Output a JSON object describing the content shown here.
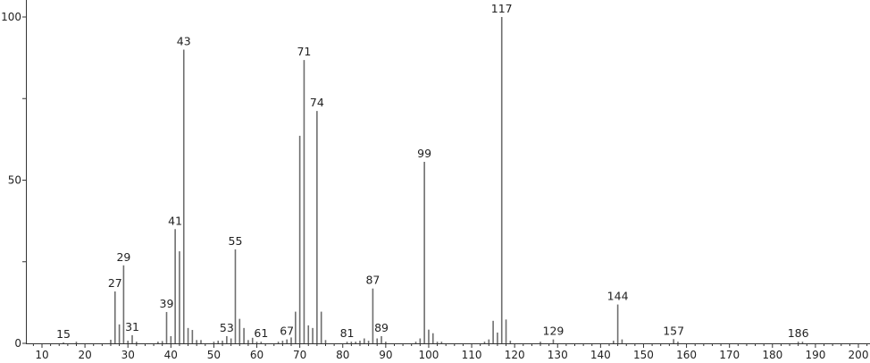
{
  "chart_data": {
    "type": "bar",
    "title": "",
    "xlabel": "",
    "ylabel": "",
    "xlim": [
      6.3,
      203
    ],
    "ylim": [
      0,
      100
    ],
    "grid": false,
    "bar_color": "#6e6e6e",
    "x_ticks": [
      10,
      20,
      30,
      40,
      50,
      60,
      70,
      80,
      90,
      100,
      110,
      120,
      130,
      140,
      150,
      160,
      170,
      180,
      190,
      200
    ],
    "y_ticks": [
      0,
      50,
      100
    ],
    "peaks": [
      [
        15,
        0.3
      ],
      [
        18,
        0.5
      ],
      [
        26,
        1.1
      ],
      [
        27,
        15.9
      ],
      [
        28,
        5.8
      ],
      [
        29,
        23.9
      ],
      [
        30,
        0.8
      ],
      [
        31,
        2.5
      ],
      [
        32,
        0.5
      ],
      [
        37,
        0.5
      ],
      [
        38,
        0.7
      ],
      [
        39,
        9.6
      ],
      [
        40,
        2.2
      ],
      [
        41,
        35
      ],
      [
        42,
        28.2
      ],
      [
        43,
        90
      ],
      [
        44,
        4.7
      ],
      [
        45,
        4.1
      ],
      [
        46,
        1
      ],
      [
        47,
        1
      ],
      [
        50,
        0.5
      ],
      [
        51,
        0.8
      ],
      [
        52,
        0.8
      ],
      [
        53,
        2.2
      ],
      [
        54,
        1.5
      ],
      [
        55,
        28.8
      ],
      [
        56,
        7.5
      ],
      [
        57,
        4.7
      ],
      [
        58,
        1
      ],
      [
        59,
        1.7
      ],
      [
        60,
        0.5
      ],
      [
        61,
        0.5
      ],
      [
        65,
        0.5
      ],
      [
        66,
        0.8
      ],
      [
        67,
        1.2
      ],
      [
        68,
        1.8
      ],
      [
        69,
        9.7
      ],
      [
        70,
        63.6
      ],
      [
        71,
        86.8
      ],
      [
        72,
        5.5
      ],
      [
        73,
        4.7
      ],
      [
        74,
        71.2
      ],
      [
        75,
        9.7
      ],
      [
        76,
        1
      ],
      [
        81,
        0.5
      ],
      [
        82,
        0.5
      ],
      [
        83,
        0.5
      ],
      [
        84,
        0.8
      ],
      [
        85,
        1.5
      ],
      [
        86,
        0.8
      ],
      [
        87,
        16.8
      ],
      [
        88,
        1.5
      ],
      [
        89,
        2.2
      ],
      [
        90,
        0.5
      ],
      [
        97,
        0.5
      ],
      [
        98,
        1.5
      ],
      [
        99,
        55.6
      ],
      [
        100,
        4.2
      ],
      [
        101,
        3.1
      ],
      [
        102,
        0.5
      ],
      [
        103,
        0.5
      ],
      [
        113,
        0.5
      ],
      [
        114,
        1.2
      ],
      [
        115,
        6.9
      ],
      [
        116,
        3.3
      ],
      [
        117,
        100
      ],
      [
        118,
        7.3
      ],
      [
        119,
        0.8
      ],
      [
        126,
        0.5
      ],
      [
        129,
        1.2
      ],
      [
        143,
        0.8
      ],
      [
        144,
        11.9
      ],
      [
        145,
        1.2
      ],
      [
        157,
        1.3
      ],
      [
        158,
        0.5
      ],
      [
        186,
        0.5
      ],
      [
        187,
        0.5
      ]
    ],
    "peak_labels": [
      "15",
      "27",
      "29",
      "31",
      "39",
      "41",
      "43",
      "53",
      "55",
      "61",
      "67",
      "71",
      "74",
      "81",
      "87",
      "89",
      "99",
      "117",
      "129",
      "144",
      "157",
      "186"
    ]
  }
}
